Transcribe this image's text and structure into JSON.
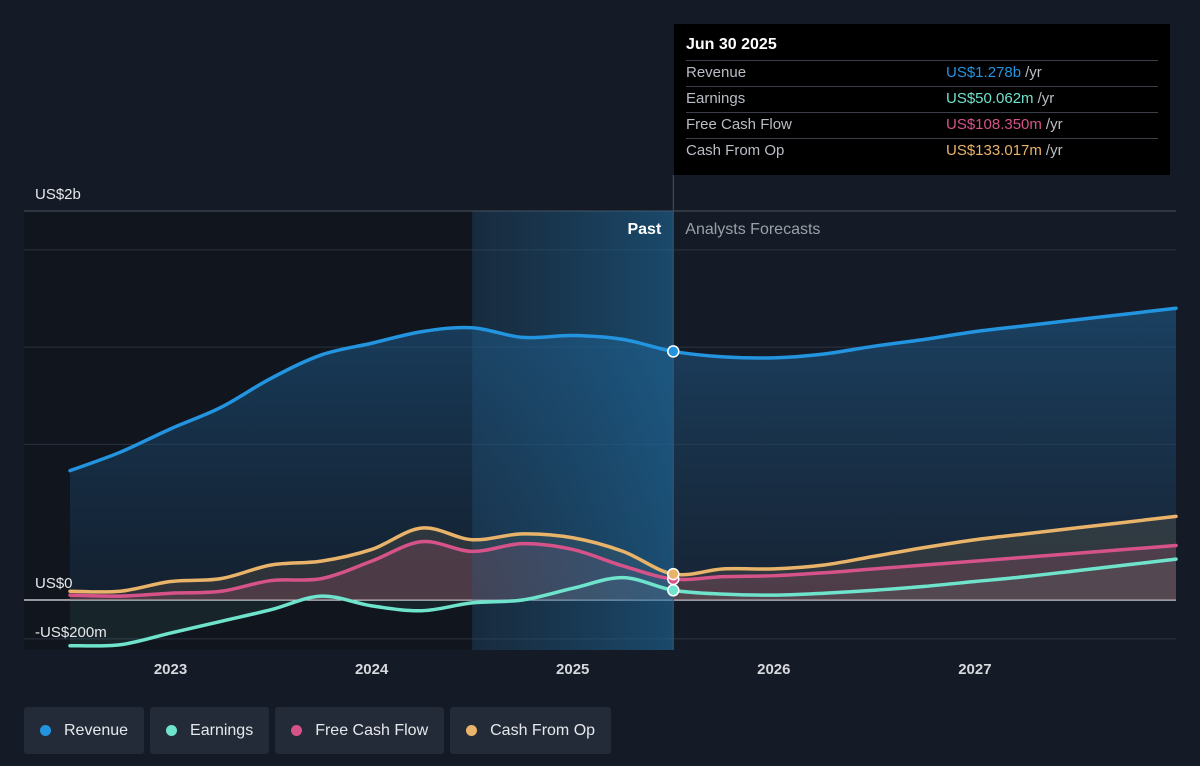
{
  "colors": {
    "background": "#151b26",
    "revenue": "#2394df",
    "earnings": "#6fe3cc",
    "free_cash_flow": "#d6538a",
    "cash_from_op": "#e9b36a"
  },
  "tooltip": {
    "date": "Jun 30 2025",
    "rows": [
      {
        "label": "Revenue",
        "value": "US$1.278b",
        "unit": "/yr",
        "color": "#2394df"
      },
      {
        "label": "Earnings",
        "value": "US$50.062m",
        "unit": "/yr",
        "color": "#6fe3cc"
      },
      {
        "label": "Free Cash Flow",
        "value": "US$108.350m",
        "unit": "/yr",
        "color": "#d6538a"
      },
      {
        "label": "Cash From Op",
        "value": "US$133.017m",
        "unit": "/yr",
        "color": "#e9b36a"
      }
    ]
  },
  "legend": [
    {
      "label": "Revenue",
      "color": "#2394df"
    },
    {
      "label": "Earnings",
      "color": "#6fe3cc"
    },
    {
      "label": "Free Cash Flow",
      "color": "#d6538a"
    },
    {
      "label": "Cash From Op",
      "color": "#e9b36a"
    }
  ],
  "chart_data": {
    "type": "line",
    "title": "",
    "xlabel": "",
    "ylabel": "",
    "y_unit": "US$ millions",
    "ylim": [
      -400,
      2000
    ],
    "xlim": [
      2022.25,
      2028.0
    ],
    "y_tick_labels": [
      {
        "value": 2000,
        "label": "US$2b"
      },
      {
        "value": 0,
        "label": "US$0"
      },
      {
        "value": -200,
        "label": "-US$200m"
      }
    ],
    "x_ticks": [
      2023,
      2024,
      2025,
      2026,
      2027
    ],
    "x_tick_labels": [
      "2023",
      "2024",
      "2025",
      "2026",
      "2027"
    ],
    "past_label": "Past",
    "forecast_label": "Analysts Forecasts",
    "forecast_start": 2025.5,
    "highlight_range": [
      2024.5,
      2025.5
    ],
    "grid": true,
    "legend_position": "bottom-left",
    "series": [
      {
        "name": "Revenue",
        "color": "#2394df",
        "points": [
          [
            2022.5,
            665
          ],
          [
            2022.75,
            760
          ],
          [
            2023.0,
            880
          ],
          [
            2023.25,
            990
          ],
          [
            2023.5,
            1140
          ],
          [
            2023.75,
            1260
          ],
          [
            2024.0,
            1320
          ],
          [
            2024.25,
            1380
          ],
          [
            2024.5,
            1400
          ],
          [
            2024.75,
            1350
          ],
          [
            2025.0,
            1360
          ],
          [
            2025.25,
            1340
          ],
          [
            2025.5,
            1278
          ],
          [
            2025.75,
            1250
          ],
          [
            2026.0,
            1245
          ],
          [
            2026.25,
            1265
          ],
          [
            2026.5,
            1305
          ],
          [
            2026.75,
            1340
          ],
          [
            2027.0,
            1380
          ],
          [
            2027.25,
            1410
          ],
          [
            2027.5,
            1440
          ],
          [
            2027.75,
            1470
          ],
          [
            2028.0,
            1500
          ]
        ]
      },
      {
        "name": "Earnings",
        "color": "#6fe3cc",
        "points": [
          [
            2022.5,
            -235
          ],
          [
            2022.75,
            -230
          ],
          [
            2023.0,
            -170
          ],
          [
            2023.25,
            -110
          ],
          [
            2023.5,
            -50
          ],
          [
            2023.75,
            20
          ],
          [
            2024.0,
            -30
          ],
          [
            2024.25,
            -55
          ],
          [
            2024.5,
            -15
          ],
          [
            2024.75,
            0
          ],
          [
            2025.0,
            60
          ],
          [
            2025.25,
            115
          ],
          [
            2025.5,
            50
          ],
          [
            2025.75,
            30
          ],
          [
            2026.0,
            25
          ],
          [
            2026.25,
            35
          ],
          [
            2026.5,
            50
          ],
          [
            2026.75,
            70
          ],
          [
            2027.0,
            95
          ],
          [
            2027.25,
            120
          ],
          [
            2027.5,
            150
          ],
          [
            2027.75,
            180
          ],
          [
            2028.0,
            210
          ]
        ]
      },
      {
        "name": "Free Cash Flow",
        "color": "#d6538a",
        "points": [
          [
            2022.5,
            25
          ],
          [
            2022.75,
            20
          ],
          [
            2023.0,
            35
          ],
          [
            2023.25,
            45
          ],
          [
            2023.5,
            100
          ],
          [
            2023.75,
            110
          ],
          [
            2024.0,
            200
          ],
          [
            2024.25,
            300
          ],
          [
            2024.5,
            250
          ],
          [
            2024.75,
            290
          ],
          [
            2025.0,
            260
          ],
          [
            2025.25,
            175
          ],
          [
            2025.5,
            108
          ],
          [
            2025.75,
            120
          ],
          [
            2026.0,
            125
          ],
          [
            2026.25,
            140
          ],
          [
            2026.5,
            160
          ],
          [
            2026.75,
            180
          ],
          [
            2027.0,
            200
          ],
          [
            2027.25,
            220
          ],
          [
            2027.5,
            240
          ],
          [
            2027.75,
            260
          ],
          [
            2028.0,
            280
          ]
        ]
      },
      {
        "name": "Cash From Op",
        "color": "#e9b36a",
        "points": [
          [
            2022.5,
            45
          ],
          [
            2022.75,
            45
          ],
          [
            2023.0,
            95
          ],
          [
            2023.25,
            110
          ],
          [
            2023.5,
            180
          ],
          [
            2023.75,
            200
          ],
          [
            2024.0,
            260
          ],
          [
            2024.25,
            370
          ],
          [
            2024.5,
            310
          ],
          [
            2024.75,
            340
          ],
          [
            2025.0,
            320
          ],
          [
            2025.25,
            250
          ],
          [
            2025.5,
            133
          ],
          [
            2025.75,
            160
          ],
          [
            2026.0,
            160
          ],
          [
            2026.25,
            180
          ],
          [
            2026.5,
            225
          ],
          [
            2026.75,
            270
          ],
          [
            2027.0,
            310
          ],
          [
            2027.25,
            340
          ],
          [
            2027.5,
            370
          ],
          [
            2027.75,
            400
          ],
          [
            2028.0,
            430
          ]
        ]
      }
    ]
  }
}
